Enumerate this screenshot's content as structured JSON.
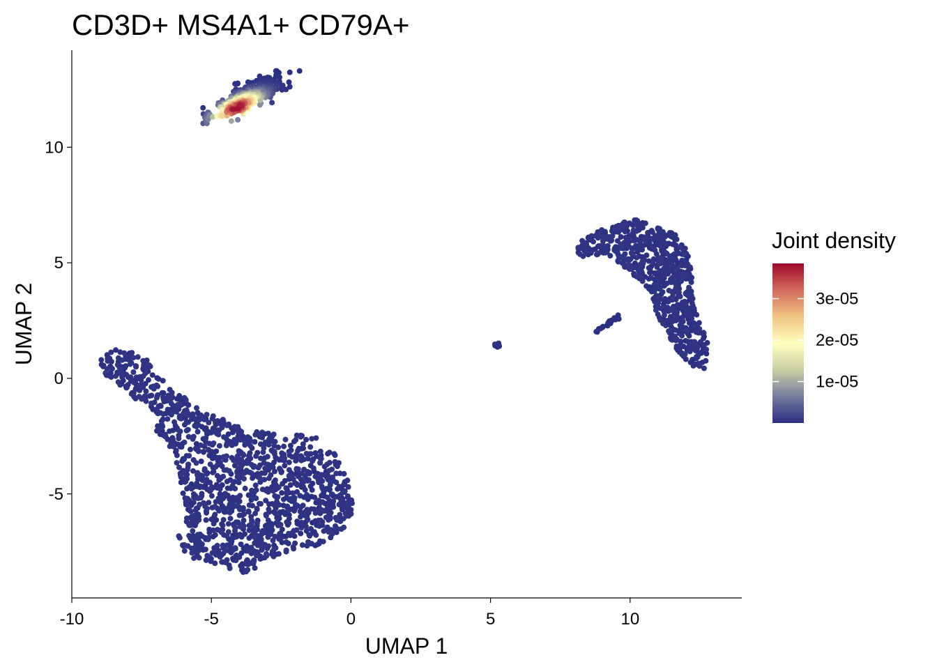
{
  "chart_data": {
    "type": "scatter",
    "title": "CD3D+ MS4A1+ CD79A+",
    "xlabel": "UMAP 1",
    "ylabel": "UMAP 2",
    "xlim": [
      -10,
      14
    ],
    "ylim": [
      -9.5,
      14.2
    ],
    "x_ticks": [
      -10,
      -5,
      0,
      5,
      10
    ],
    "x_tick_labels": [
      "-10",
      "-5",
      "0",
      "5",
      "10"
    ],
    "y_ticks": [
      -5,
      0,
      5,
      10
    ],
    "y_tick_labels": [
      "-5",
      "0",
      "5",
      "10"
    ],
    "grid": false,
    "legend": {
      "title": "Joint density",
      "placement": "right",
      "range": [
        0,
        3.85e-05
      ],
      "ticks": [
        1e-05,
        2e-05,
        3e-05
      ],
      "tick_labels": [
        "1e-05",
        "2e-05",
        "3e-05"
      ],
      "colors": [
        "#2b2f82",
        "#767c9e",
        "#c9cfa3",
        "#ffffbf",
        "#f0c584",
        "#d26b5c",
        "#9e0a2e"
      ]
    },
    "clusters": [
      {
        "name": "upper-left cluster",
        "n": 340,
        "center": [
          -3.7,
          12.2
        ],
        "extent_x": [
          -5.3,
          -1.6
        ],
        "extent_y": [
          10.6,
          13.3
        ],
        "density_peak": [
          -4.1,
          11.7
        ],
        "density_max": 3.85e-05
      },
      {
        "name": "lower-left cluster",
        "n": 1350,
        "extent_x": [
          -9.0,
          0.1
        ],
        "extent_y": [
          -8.5,
          1.3
        ],
        "density_max": 5e-07
      },
      {
        "name": "right cluster",
        "n": 700,
        "extent_x": [
          7.8,
          12.8
        ],
        "extent_y": [
          0.4,
          6.9
        ],
        "density_max": 5e-07
      },
      {
        "name": "small cluster near x=5",
        "n": 10,
        "center": [
          5.25,
          1.45
        ],
        "density_max": 2e-07
      },
      {
        "name": "strand near (9, 2.3)",
        "n": 22,
        "extent_x": [
          8.8,
          9.6
        ],
        "extent_y": [
          2.0,
          2.7
        ],
        "density_max": 2e-07
      }
    ]
  }
}
